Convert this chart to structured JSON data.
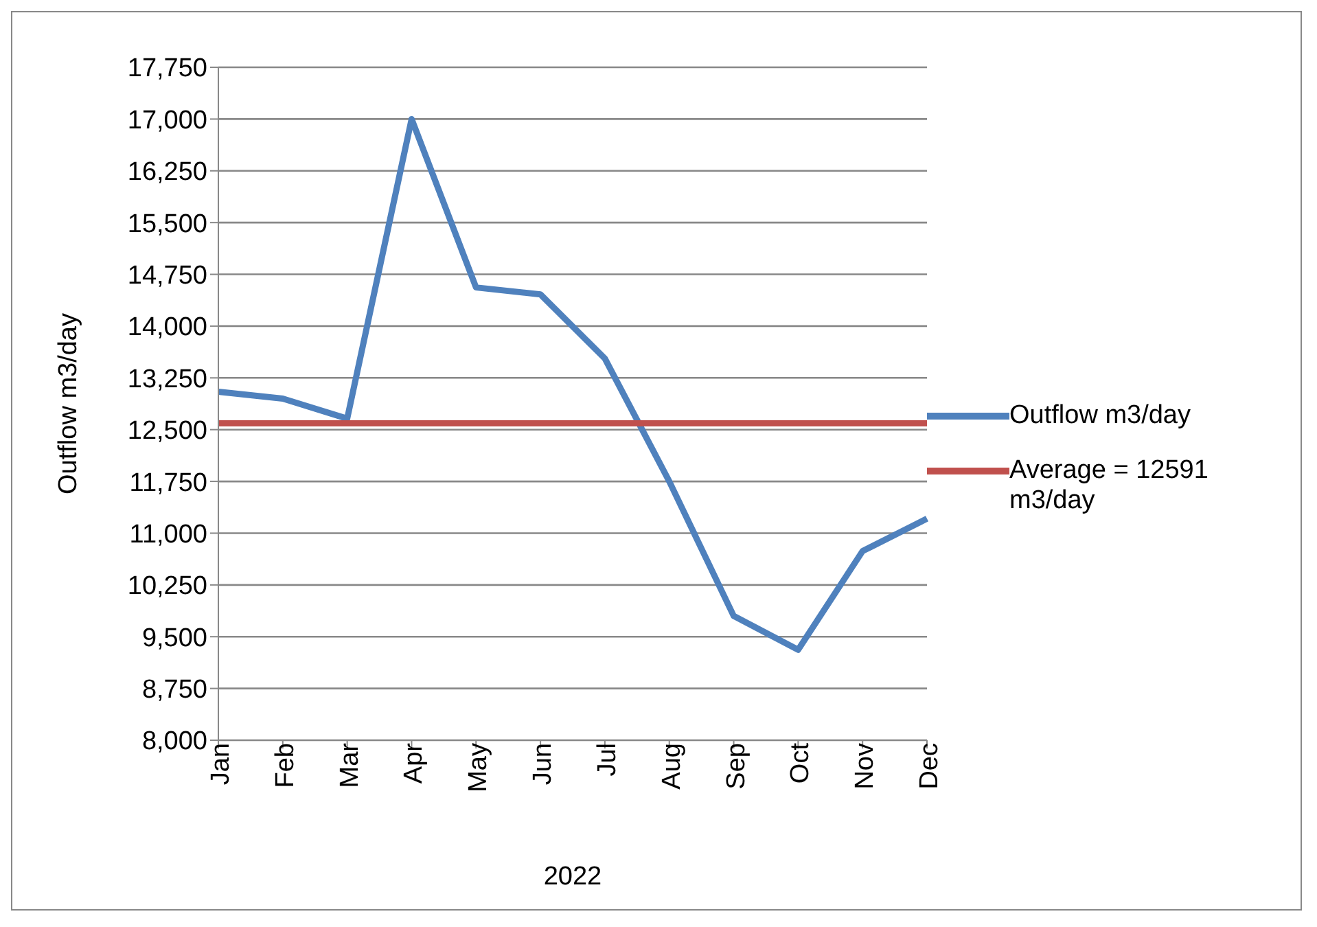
{
  "chart_data": {
    "type": "line",
    "xlabel": "2022",
    "ylabel": "Outflow m3/day",
    "categories": [
      "Jan",
      "Feb",
      "Mar",
      "Apr",
      "May",
      "Jun",
      "Jul",
      "Aug",
      "Sep",
      "Oct",
      "Nov",
      "Dec"
    ],
    "series": [
      {
        "name": "Outflow m3/day",
        "color": "#4f81bd",
        "values": [
          13050,
          12950,
          12660,
          17000,
          14560,
          14460,
          13530,
          11750,
          9800,
          9310,
          10740,
          11210
        ]
      },
      {
        "name": "Average = 12591 m3/day",
        "color": "#c0504d",
        "values": [
          12591,
          12591,
          12591,
          12591,
          12591,
          12591,
          12591,
          12591,
          12591,
          12591,
          12591,
          12591
        ]
      }
    ],
    "ylim": [
      8000,
      17750
    ],
    "yticks": [
      {
        "value": 8000,
        "label": "8,000"
      },
      {
        "value": 8750,
        "label": "8,750"
      },
      {
        "value": 9500,
        "label": "9,500"
      },
      {
        "value": 10250,
        "label": "10,250"
      },
      {
        "value": 11000,
        "label": "11,000"
      },
      {
        "value": 11750,
        "label": "11,750"
      },
      {
        "value": 12500,
        "label": "12,500"
      },
      {
        "value": 13250,
        "label": "13,250"
      },
      {
        "value": 14000,
        "label": "14,000"
      },
      {
        "value": 14750,
        "label": "14,750"
      },
      {
        "value": 15500,
        "label": "15,500"
      },
      {
        "value": 16250,
        "label": "16,250"
      },
      {
        "value": 17000,
        "label": "17,000"
      },
      {
        "value": 17750,
        "label": "17,750"
      }
    ],
    "grid": "y",
    "legend": "right",
    "marker": "none",
    "line_style": "solid"
  }
}
